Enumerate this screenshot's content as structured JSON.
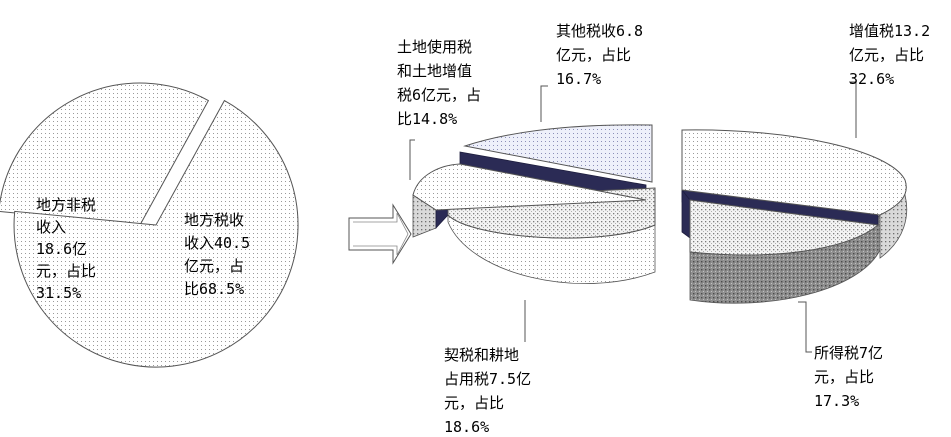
{
  "chart_data": [
    {
      "type": "pie",
      "slices": [
        {
          "label_lines": [
            "地方非税",
            "收入",
            "18.6亿",
            "元，占比",
            "31.5%"
          ],
          "value": 18.6,
          "percent": 31.5
        },
        {
          "label_lines": [
            "地方税收",
            "收入40.5",
            "亿元，占",
            "比68.5%"
          ],
          "value": 40.5,
          "percent": 68.5
        }
      ]
    },
    {
      "type": "pie",
      "style": "3d-exploded",
      "slices": [
        {
          "label_lines": [
            "增值税13.2",
            "亿元，占比",
            "32.6%"
          ],
          "value": 13.2,
          "percent": 32.6
        },
        {
          "label_lines": [
            "所得税7亿",
            "元，占比",
            "17.3%"
          ],
          "value": 7,
          "percent": 17.3
        },
        {
          "label_lines": [
            "契税和耕地",
            "占用税7.5亿",
            "元，占比",
            "18.6%"
          ],
          "value": 7.5,
          "percent": 18.6
        },
        {
          "label_lines": [
            "土地使用税",
            "和土地增值",
            "税6亿元，占",
            "比14.8%"
          ],
          "value": 6,
          "percent": 14.8
        },
        {
          "label_lines": [
            "其他税收6.8",
            "亿元，占比",
            "16.7%"
          ],
          "value": 6.8,
          "percent": 16.7
        }
      ]
    }
  ]
}
